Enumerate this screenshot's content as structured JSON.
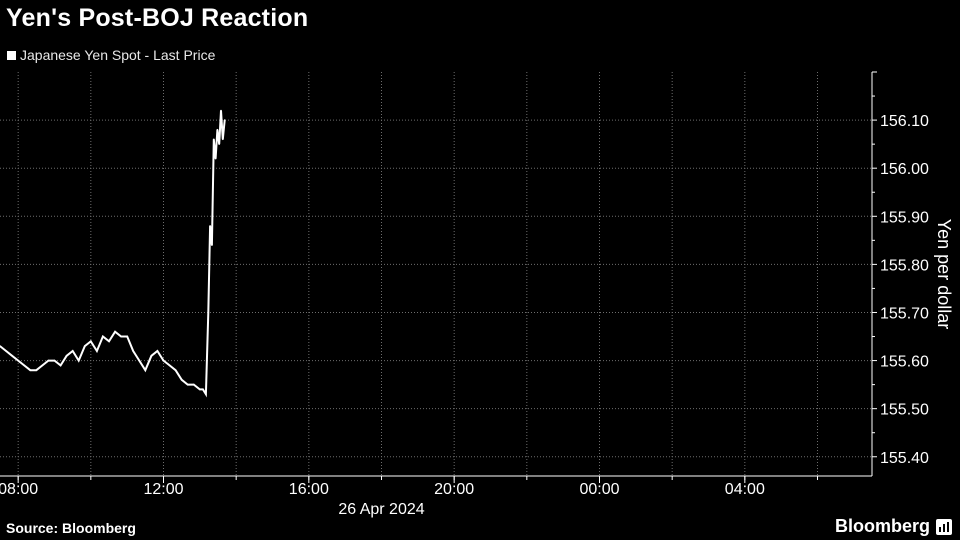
{
  "header": {
    "title": "Yen's Post-BOJ Reaction",
    "legend_label": "Japanese Yen Spot - Last Price"
  },
  "footer": {
    "source": "Source: Bloomberg",
    "brand": "Bloomberg"
  },
  "colors": {
    "background": "#000000",
    "series": "#ffffff",
    "grid": "#6e6e6e"
  },
  "chart_data": {
    "type": "line",
    "title": "Yen's Post-BOJ Reaction",
    "ylabel": "Yen per dollar",
    "date_label": "26 Apr 2024",
    "ylim": [
      155.36,
      156.2
    ],
    "xlim": [
      "07:30",
      "07:30+1"
    ],
    "y_ticks": [
      155.4,
      155.5,
      155.6,
      155.7,
      155.8,
      155.9,
      156.0,
      156.1
    ],
    "y_tick_labels": [
      "155.40",
      "155.50",
      "155.60",
      "155.70",
      "155.80",
      "155.90",
      "156.00",
      "156.10"
    ],
    "x_tick_labels": [
      "08:00",
      "12:00",
      "16:00",
      "20:00",
      "00:00",
      "04:00"
    ],
    "x_tick_hours": [
      8,
      12,
      16,
      20,
      24,
      28
    ],
    "grid": true,
    "series": [
      {
        "name": "Japanese Yen Spot - Last Price",
        "x": [
          "07:30",
          "07:40",
          "07:50",
          "08:00",
          "08:10",
          "08:20",
          "08:30",
          "08:40",
          "08:50",
          "09:00",
          "09:10",
          "09:20",
          "09:30",
          "09:40",
          "09:50",
          "10:00",
          "10:10",
          "10:20",
          "10:30",
          "10:40",
          "10:50",
          "11:00",
          "11:10",
          "11:20",
          "11:30",
          "11:40",
          "11:50",
          "12:00",
          "12:10",
          "12:20",
          "12:30",
          "12:40",
          "12:50",
          "13:00",
          "13:05",
          "13:10",
          "13:14",
          "13:17",
          "13:20",
          "13:23",
          "13:26",
          "13:29",
          "13:32",
          "13:35",
          "13:38",
          "13:41"
        ],
        "y": [
          155.63,
          155.62,
          155.61,
          155.6,
          155.59,
          155.58,
          155.58,
          155.59,
          155.6,
          155.6,
          155.59,
          155.61,
          155.62,
          155.6,
          155.63,
          155.64,
          155.62,
          155.65,
          155.64,
          155.66,
          155.65,
          155.65,
          155.62,
          155.6,
          155.58,
          155.61,
          155.62,
          155.6,
          155.59,
          155.58,
          155.56,
          155.55,
          155.55,
          155.54,
          155.54,
          155.53,
          155.7,
          155.88,
          155.84,
          156.06,
          156.02,
          156.08,
          156.05,
          156.12,
          156.06,
          156.1
        ]
      }
    ]
  }
}
